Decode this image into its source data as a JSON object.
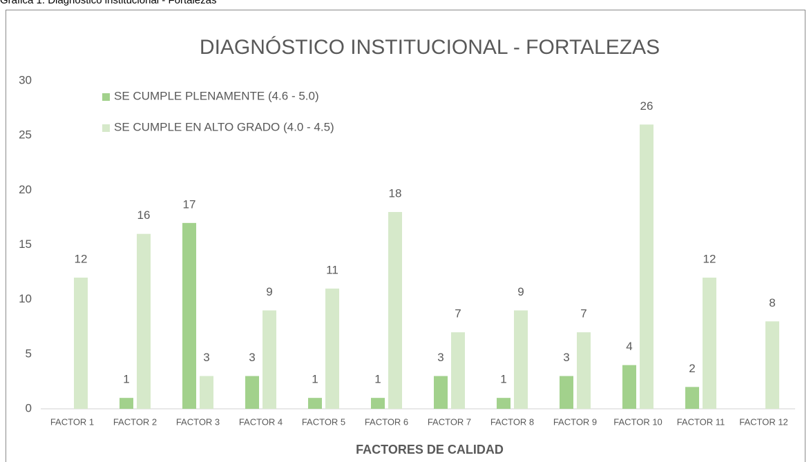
{
  "caption": "Gráfica 1. Diagnóstico institucional - Fortalezas",
  "chart_data": {
    "type": "bar",
    "title": "DIAGNÓSTICO INSTITUCIONAL - FORTALEZAS",
    "x_label": "FACTORES DE CALIDAD",
    "categories": [
      "FACTOR 1",
      "FACTOR 2",
      "FACTOR 3",
      "FACTOR 4",
      "FACTOR 5",
      "FACTOR 6",
      "FACTOR 7",
      "FACTOR 8",
      "FACTOR 9",
      "FACTOR 10",
      "FACTOR 11",
      "FACTOR 12"
    ],
    "series": [
      {
        "name": "SE CUMPLE PLENAMENTE (4.6 - 5.0)",
        "color": "#a2d18c",
        "values": [
          null,
          1,
          17,
          3,
          1,
          1,
          3,
          1,
          3,
          4,
          2,
          null
        ]
      },
      {
        "name": "SE CUMPLE EN ALTO GRADO (4.0 - 4.5)",
        "color": "#d6e9ca",
        "values": [
          12,
          16,
          3,
          9,
          11,
          18,
          7,
          9,
          7,
          26,
          12,
          8
        ]
      }
    ],
    "ylim": [
      0,
      30
    ],
    "yticks": [
      0,
      5,
      10,
      15,
      20,
      25,
      30
    ],
    "grid": false,
    "legend": "top-left",
    "data_labels": true
  }
}
